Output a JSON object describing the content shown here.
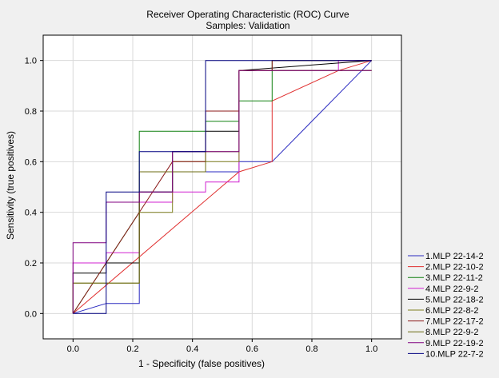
{
  "chart_data": {
    "type": "line",
    "title": "Receiver Operating Characteristic (ROC) Curve",
    "subtitle": "Samples: Validation",
    "xlabel": "1 - Specificity (false positives)",
    "ylabel": "Sensitivity (true positives)",
    "xlim": [
      -0.1,
      1.1
    ],
    "ylim": [
      -0.1,
      1.1
    ],
    "x_ticks": [
      "0.0",
      "0.2",
      "0.4",
      "0.6",
      "0.8",
      "1.0"
    ],
    "y_ticks": [
      "0.0",
      "0.2",
      "0.4",
      "0.6",
      "0.8",
      "1.0"
    ],
    "grid": true,
    "legend_position": "bottom-right, outside plot",
    "series": [
      {
        "name": "1.MLP 22-14-2",
        "color": "#2a2ac0",
        "x": [
          0.0,
          0.111,
          0.222,
          0.222,
          0.333,
          0.333,
          0.556,
          0.556,
          0.667,
          1.0
        ],
        "y": [
          0.0,
          0.04,
          0.04,
          0.48,
          0.48,
          0.56,
          0.56,
          0.6,
          0.6,
          1.0
        ]
      },
      {
        "name": "2.MLP 22-10-2",
        "color": "#e03030",
        "x": [
          0.0,
          0.556,
          0.667,
          0.667,
          0.889,
          1.0
        ],
        "y": [
          0.0,
          0.56,
          0.6,
          0.84,
          0.96,
          1.0
        ]
      },
      {
        "name": "3.MLP 22-11-2",
        "color": "#108010",
        "x": [
          0.0,
          0.222,
          0.222,
          0.444,
          0.444,
          0.556,
          0.556,
          0.667,
          0.667,
          1.0
        ],
        "y": [
          0.0,
          0.4,
          0.72,
          0.72,
          0.76,
          0.76,
          0.84,
          0.84,
          1.0,
          1.0
        ]
      },
      {
        "name": "4.MLP 22-9-2",
        "color": "#d020d0",
        "x": [
          0.0,
          0.0,
          0.111,
          0.111,
          0.222,
          0.222,
          0.333,
          0.333,
          0.444,
          0.444,
          0.556,
          0.556,
          0.889,
          0.889,
          1.0
        ],
        "y": [
          0.0,
          0.2,
          0.2,
          0.24,
          0.24,
          0.44,
          0.44,
          0.48,
          0.48,
          0.52,
          0.52,
          0.96,
          0.96,
          1.0,
          1.0
        ]
      },
      {
        "name": "5.MLP 22-18-2",
        "color": "#000000",
        "x": [
          0.0,
          0.0,
          0.111,
          0.111,
          0.222,
          0.222,
          0.333,
          0.333,
          0.444,
          0.444,
          0.556,
          0.556,
          1.0
        ],
        "y": [
          0.0,
          0.16,
          0.16,
          0.2,
          0.2,
          0.48,
          0.48,
          0.64,
          0.64,
          0.72,
          0.72,
          0.96,
          1.0
        ]
      },
      {
        "name": "6.MLP 22-8-2",
        "color": "#808020",
        "x": [
          0.0,
          0.0,
          0.222,
          0.222,
          0.333,
          0.333,
          0.556,
          0.556,
          1.0
        ],
        "y": [
          0.0,
          0.12,
          0.12,
          0.4,
          0.4,
          0.6,
          0.6,
          0.96,
          0.96
        ]
      },
      {
        "name": "7.MLP 22-17-2",
        "color": "#8b1a1a",
        "x": [
          0.0,
          0.333,
          0.444,
          0.444,
          0.556,
          0.556,
          0.667,
          0.667,
          1.0
        ],
        "y": [
          0.0,
          0.6,
          0.6,
          0.8,
          0.8,
          0.96,
          0.96,
          1.0,
          1.0
        ]
      },
      {
        "name": "8.MLP 22-9-2",
        "color": "#6b6b10",
        "x": [
          0.0,
          0.0,
          0.222,
          0.222,
          0.444,
          0.444,
          0.556,
          0.556,
          1.0
        ],
        "y": [
          0.0,
          0.12,
          0.12,
          0.56,
          0.56,
          0.64,
          0.64,
          0.96,
          0.96
        ]
      },
      {
        "name": "9.MLP 22-19-2",
        "color": "#800080",
        "x": [
          0.0,
          0.0,
          0.111,
          0.111,
          0.222,
          0.222,
          0.333,
          0.333,
          0.556,
          0.556,
          1.0
        ],
        "y": [
          0.0,
          0.28,
          0.28,
          0.44,
          0.44,
          0.48,
          0.48,
          0.64,
          0.64,
          0.96,
          0.96
        ]
      },
      {
        "name": "10.MLP 22-7-2",
        "color": "#000080",
        "x": [
          0.0,
          0.111,
          0.111,
          0.222,
          0.222,
          0.444,
          0.444,
          1.0,
          1.0
        ],
        "y": [
          0.0,
          0.0,
          0.48,
          0.48,
          0.64,
          0.64,
          1.0,
          1.0,
          1.0
        ]
      }
    ]
  }
}
